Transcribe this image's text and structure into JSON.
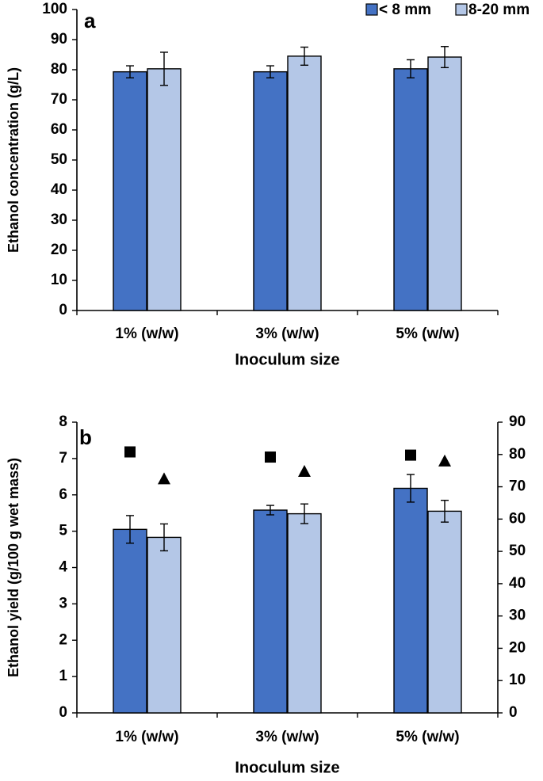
{
  "colors": {
    "series_dark": "#4472C4",
    "series_light": "#B4C7E7",
    "marker": "#000000",
    "axis": "#000000"
  },
  "legend": {
    "items": [
      "< 8 mm",
      "8-20 mm"
    ]
  },
  "chart_data": [
    {
      "panel_label": "a",
      "type": "bar",
      "categories": [
        "1% (w/w)",
        "3% (w/w)",
        "5% (w/w)"
      ],
      "series": [
        {
          "name": "< 8 mm",
          "values": [
            79.3,
            79.3,
            80.3
          ],
          "errors": [
            2.0,
            2.0,
            3.0
          ]
        },
        {
          "name": "8-20 mm",
          "values": [
            80.3,
            84.5,
            84.2
          ],
          "errors": [
            5.5,
            3.0,
            3.5
          ]
        }
      ],
      "xlabel": "Inoculum size",
      "ylabel": "Ethanol concentration (g/L)",
      "ylim": [
        0,
        100
      ],
      "yticks": [
        0,
        10,
        20,
        30,
        40,
        50,
        60,
        70,
        80,
        90,
        100
      ],
      "legend_position": "top-right",
      "grid": false
    },
    {
      "panel_label": "b",
      "type": "bar",
      "categories": [
        "1% (w/w)",
        "3% (w/w)",
        "5% (w/w)"
      ],
      "series": [
        {
          "name": "< 8 mm",
          "values": [
            5.05,
            5.58,
            6.18
          ],
          "errors": [
            0.38,
            0.13,
            0.38
          ]
        },
        {
          "name": "8-20 mm",
          "values": [
            4.83,
            5.48,
            5.55
          ],
          "errors": [
            0.37,
            0.27,
            0.3
          ]
        }
      ],
      "markers": [
        {
          "shape": "square",
          "axis": "right",
          "values": [
            80.8,
            79.2,
            79.8
          ]
        },
        {
          "shape": "triangle",
          "axis": "right",
          "values": [
            72.5,
            74.8,
            78.0
          ]
        }
      ],
      "xlabel": "Inoculum size",
      "ylabel": "Ethanol yield (g/100 g wet mass)",
      "ylim": [
        0,
        8
      ],
      "yticks": [
        0,
        1,
        2,
        3,
        4,
        5,
        6,
        7,
        8
      ],
      "y2lim": [
        0,
        90
      ],
      "y2ticks": [
        0,
        10,
        20,
        30,
        40,
        50,
        60,
        70,
        80,
        90
      ],
      "grid": false
    }
  ]
}
